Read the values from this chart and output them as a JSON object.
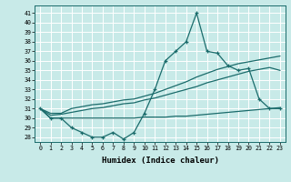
{
  "xlabel": "Humidex (Indice chaleur)",
  "background_color": "#c8eae8",
  "grid_color": "#ffffff",
  "line_color": "#1a6b6b",
  "xlim": [
    -0.5,
    23.5
  ],
  "ylim": [
    27.5,
    41.8
  ],
  "yticks": [
    28,
    29,
    30,
    31,
    32,
    33,
    34,
    35,
    36,
    37,
    38,
    39,
    40,
    41
  ],
  "xticks": [
    0,
    1,
    2,
    3,
    4,
    5,
    6,
    7,
    8,
    9,
    10,
    11,
    12,
    13,
    14,
    15,
    16,
    17,
    18,
    19,
    20,
    21,
    22,
    23
  ],
  "series1": [
    31,
    30,
    30,
    29,
    28.5,
    28,
    28,
    28.5,
    27.8,
    28.5,
    30.5,
    33,
    36,
    37,
    38,
    41,
    37,
    36.8,
    35.5,
    35,
    35.2,
    32,
    31,
    31
  ],
  "series2": [
    31,
    30.5,
    30.5,
    31.0,
    31.2,
    31.4,
    31.5,
    31.7,
    31.9,
    32.0,
    32.3,
    32.6,
    33.0,
    33.4,
    33.8,
    34.3,
    34.7,
    35.1,
    35.4,
    35.7,
    35.9,
    36.1,
    36.3,
    36.5
  ],
  "series3": [
    31,
    30.3,
    30.4,
    30.6,
    30.8,
    31.0,
    31.1,
    31.3,
    31.5,
    31.6,
    31.9,
    32.1,
    32.4,
    32.7,
    33.0,
    33.3,
    33.7,
    34.0,
    34.3,
    34.6,
    34.9,
    35.1,
    35.3,
    35.0
  ],
  "series4": [
    31,
    30.0,
    30.0,
    30.0,
    30.0,
    30.0,
    30.0,
    30.0,
    30.0,
    30.0,
    30.1,
    30.1,
    30.1,
    30.2,
    30.2,
    30.3,
    30.4,
    30.5,
    30.6,
    30.7,
    30.8,
    30.9,
    31.0,
    31.1
  ]
}
